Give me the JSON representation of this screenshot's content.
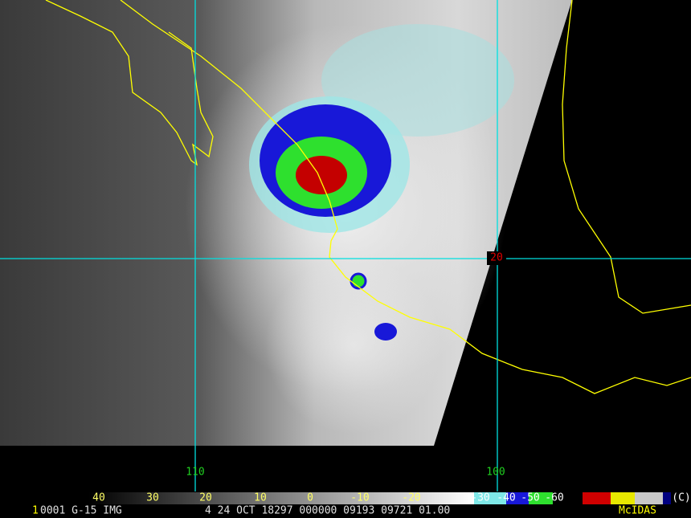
{
  "map": {
    "grid_labels": {
      "lon_110": "110",
      "lon_100": "100",
      "lat_20": "20"
    }
  },
  "colorbar": {
    "labels": [
      "40",
      "30",
      "20",
      "10",
      "0",
      "-10",
      "-20",
      "-30",
      "-40",
      "-50",
      "-60"
    ],
    "copyright": "(C)"
  },
  "footer": {
    "frame": "1",
    "info": "0001 G-15 IMG",
    "time": "4 24 OCT 18297 000000 09193 09721 01.00",
    "system": "McIDAS"
  }
}
